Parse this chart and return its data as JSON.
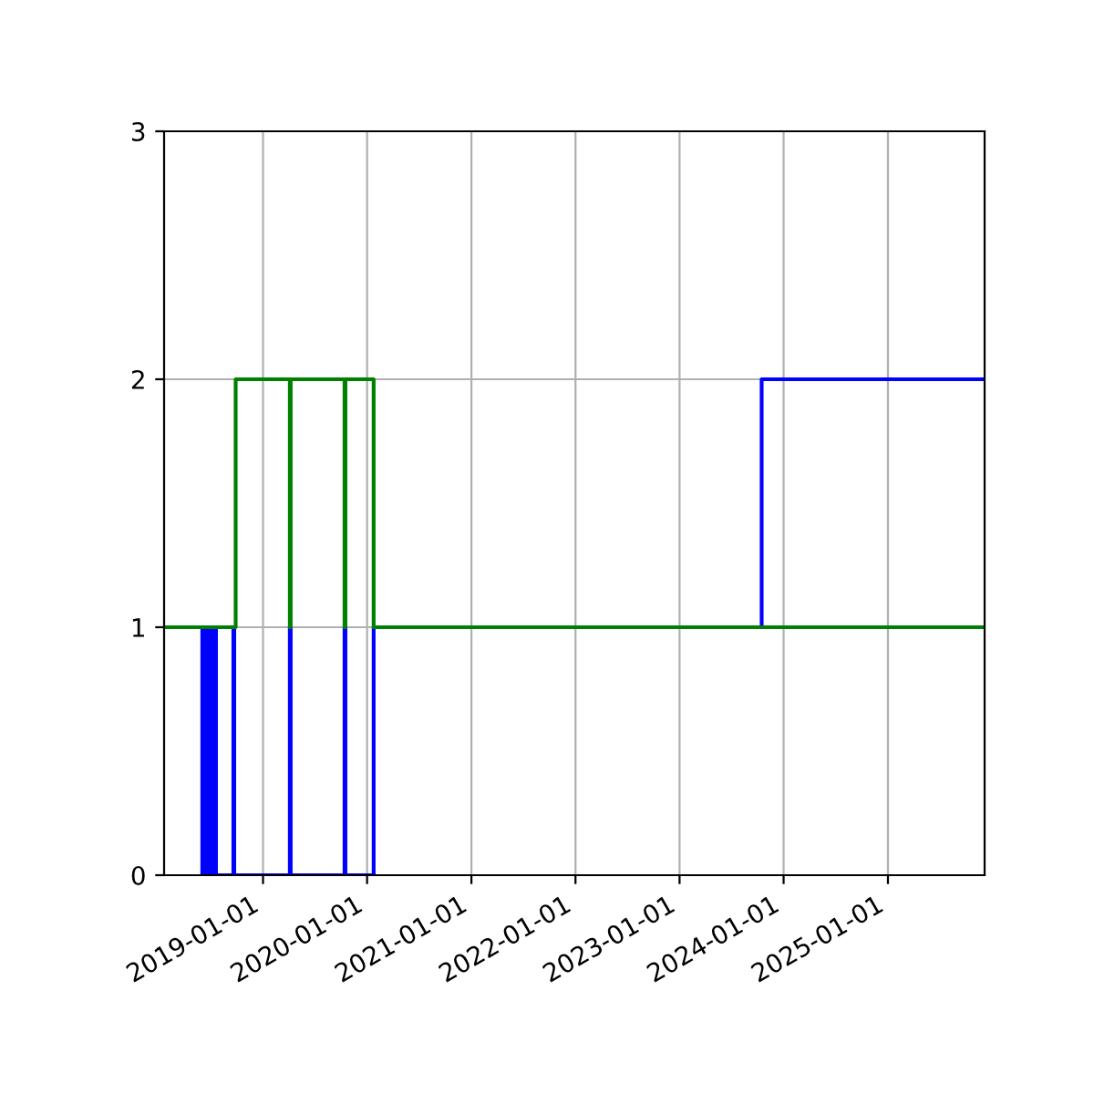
{
  "chart_data": {
    "type": "step",
    "series": [
      {
        "color": "#0000ff",
        "x": [
          "2018-01-19",
          "2018-06-02",
          "2018-06-08",
          "2018-06-11",
          "2018-06-14",
          "2018-06-17",
          "2018-06-21",
          "2018-06-24",
          "2018-06-27",
          "2018-06-30",
          "2018-07-04",
          "2018-07-07",
          "2018-07-10",
          "2018-07-13",
          "2018-07-16",
          "2018-07-20",
          "2018-09-19",
          "2018-09-22",
          "2019-04-05",
          "2019-04-08",
          "2019-10-14",
          "2019-10-17",
          "2020-01-24",
          "2023-10-16",
          "2025-12-06"
        ],
        "values": [
          1,
          0,
          1,
          0,
          1,
          0,
          1,
          0,
          1,
          0,
          1,
          0,
          1,
          0,
          1,
          0,
          1,
          0,
          1,
          0,
          1,
          0,
          1,
          2,
          2
        ]
      },
      {
        "color": "#008000",
        "x": [
          "2018-01-19",
          "2018-09-27",
          "2019-04-05",
          "2019-04-08",
          "2019-10-14",
          "2019-10-17",
          "2020-01-24",
          "2025-12-06"
        ],
        "values": [
          1,
          2,
          1,
          2,
          1,
          2,
          1,
          1
        ]
      }
    ],
    "xlim": [
      "2018-01-19",
      "2025-12-06"
    ],
    "xticks": [
      "2019-01-01",
      "2020-01-01",
      "2021-01-01",
      "2022-01-01",
      "2023-01-01",
      "2024-01-01",
      "2025-01-01"
    ],
    "ylim": [
      0,
      3
    ],
    "yticks": [
      0,
      1,
      2,
      3
    ],
    "grid": true
  }
}
